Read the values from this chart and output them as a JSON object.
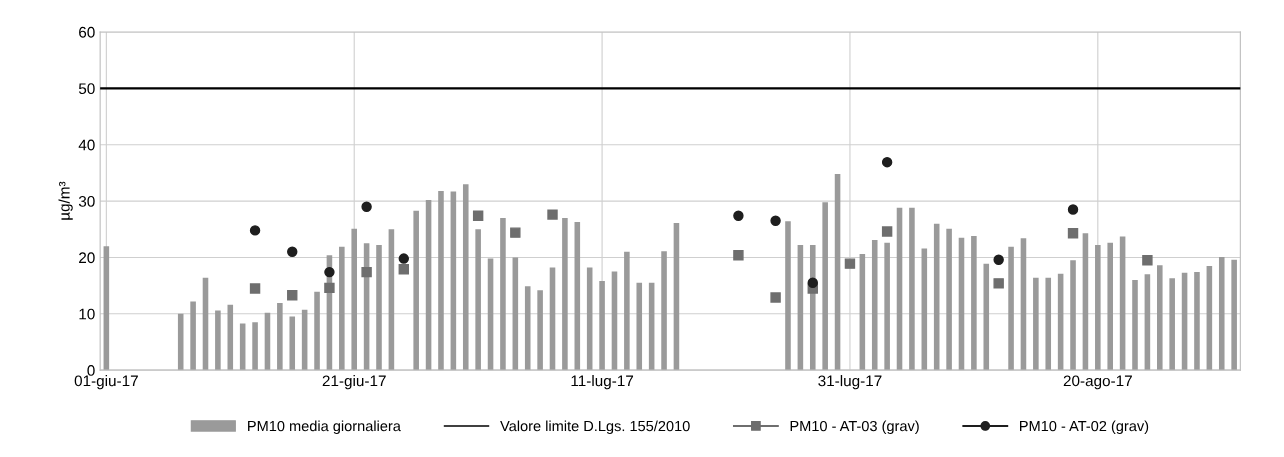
{
  "chart_data": {
    "type": "bar",
    "ylabel": "µg/m³",
    "ylim": [
      0,
      60
    ],
    "yticks": [
      0,
      10,
      20,
      30,
      40,
      50,
      60
    ],
    "xlim": [
      "2017-05-31T12:00",
      "2017-08-31T12:00"
    ],
    "xticks": [
      {
        "value": "2017-06-01",
        "label": "01-giu-17"
      },
      {
        "value": "2017-06-21",
        "label": "21-giu-17"
      },
      {
        "value": "2017-07-11",
        "label": "11-lug-17"
      },
      {
        "value": "2017-07-31",
        "label": "31-lug-17"
      },
      {
        "value": "2017-08-20",
        "label": "20-ago-17"
      }
    ],
    "grid": true,
    "legend": "bottom",
    "series": [
      {
        "name": "PM10 media giornaliera",
        "color": "#9a9a9a",
        "x": [
          "2017-06-01",
          "2017-06-07",
          "2017-06-08",
          "2017-06-09",
          "2017-06-10",
          "2017-06-11",
          "2017-06-12",
          "2017-06-13",
          "2017-06-14",
          "2017-06-15",
          "2017-06-16",
          "2017-06-17",
          "2017-06-18",
          "2017-06-19",
          "2017-06-20",
          "2017-06-21",
          "2017-06-22",
          "2017-06-23",
          "2017-06-24",
          "2017-06-25",
          "2017-06-26",
          "2017-06-27",
          "2017-06-28",
          "2017-06-29",
          "2017-06-30",
          "2017-07-01",
          "2017-07-02",
          "2017-07-03",
          "2017-07-04",
          "2017-07-05",
          "2017-07-06",
          "2017-07-07",
          "2017-07-08",
          "2017-07-09",
          "2017-07-10",
          "2017-07-11",
          "2017-07-12",
          "2017-07-13",
          "2017-07-14",
          "2017-07-15",
          "2017-07-16",
          "2017-07-17",
          "2017-07-26",
          "2017-07-27",
          "2017-07-28",
          "2017-07-29",
          "2017-07-30",
          "2017-07-31",
          "2017-08-01",
          "2017-08-02",
          "2017-08-03",
          "2017-08-04",
          "2017-08-05",
          "2017-08-06",
          "2017-08-07",
          "2017-08-08",
          "2017-08-09",
          "2017-08-10",
          "2017-08-11",
          "2017-08-12",
          "2017-08-13",
          "2017-08-14",
          "2017-08-15",
          "2017-08-16",
          "2017-08-17",
          "2017-08-18",
          "2017-08-19",
          "2017-08-20",
          "2017-08-21",
          "2017-08-22",
          "2017-08-23",
          "2017-08-24",
          "2017-08-25",
          "2017-08-26",
          "2017-08-27",
          "2017-08-28",
          "2017-08-29",
          "2017-08-30",
          "2017-08-31"
        ],
        "values": [
          22.0,
          10.0,
          12.2,
          16.4,
          10.6,
          11.6,
          8.3,
          8.5,
          10.2,
          11.9,
          9.5,
          10.7,
          13.9,
          20.4,
          21.9,
          25.1,
          22.5,
          22.2,
          25.0,
          null,
          28.3,
          30.2,
          31.8,
          31.7,
          33.0,
          25.0,
          19.8,
          27.0,
          20.0,
          14.9,
          14.2,
          18.2,
          27.0,
          26.3,
          18.2,
          15.8,
          17.5,
          21.0,
          15.5,
          15.5,
          21.1,
          26.1,
          26.4,
          22.2,
          22.2,
          29.8,
          34.8,
          null,
          20.6,
          23.1,
          22.6,
          28.8,
          28.8,
          21.6,
          26.0,
          25.1,
          23.5,
          23.8,
          18.9,
          null,
          21.9,
          23.4,
          16.4,
          16.4,
          17.1,
          19.5,
          24.3,
          22.2,
          22.6,
          23.7,
          16.0,
          17.0,
          18.6,
          16.3,
          17.3,
          17.4,
          18.5,
          20.1,
          19.6
        ]
      },
      {
        "name": "PM10 - AT-03 (grav)",
        "type": "scatter",
        "marker": "square",
        "color": "#6e6e6e",
        "x": [
          "2017-06-13",
          "2017-06-16",
          "2017-06-19",
          "2017-06-22",
          "2017-06-25",
          "2017-07-01",
          "2017-07-04",
          "2017-07-07",
          "2017-07-22",
          "2017-07-25",
          "2017-07-28",
          "2017-07-31",
          "2017-08-03",
          "2017-08-12",
          "2017-08-18",
          "2017-08-24"
        ],
        "values": [
          14.5,
          13.3,
          14.6,
          17.4,
          17.9,
          27.4,
          24.4,
          27.6,
          20.4,
          12.9,
          14.5,
          18.9,
          24.6,
          15.4,
          24.3,
          19.5
        ]
      },
      {
        "name": "PM10 - AT-02 (grav)",
        "type": "scatter",
        "marker": "circle",
        "color": "#1e1e1e",
        "x": [
          "2017-06-13",
          "2017-06-16",
          "2017-06-19",
          "2017-06-22",
          "2017-06-25",
          "2017-07-22",
          "2017-07-25",
          "2017-07-28",
          "2017-08-03",
          "2017-08-12",
          "2017-08-18"
        ],
        "values": [
          24.8,
          21.0,
          17.4,
          29.0,
          19.8,
          27.4,
          26.5,
          15.5,
          36.9,
          19.6,
          28.5
        ]
      }
    ],
    "ref_lines": [
      {
        "axis": "y",
        "value": 50,
        "label": "Valore limite D.Lgs. 155/2010",
        "color": "#000000",
        "line_style": "solid"
      }
    ]
  }
}
